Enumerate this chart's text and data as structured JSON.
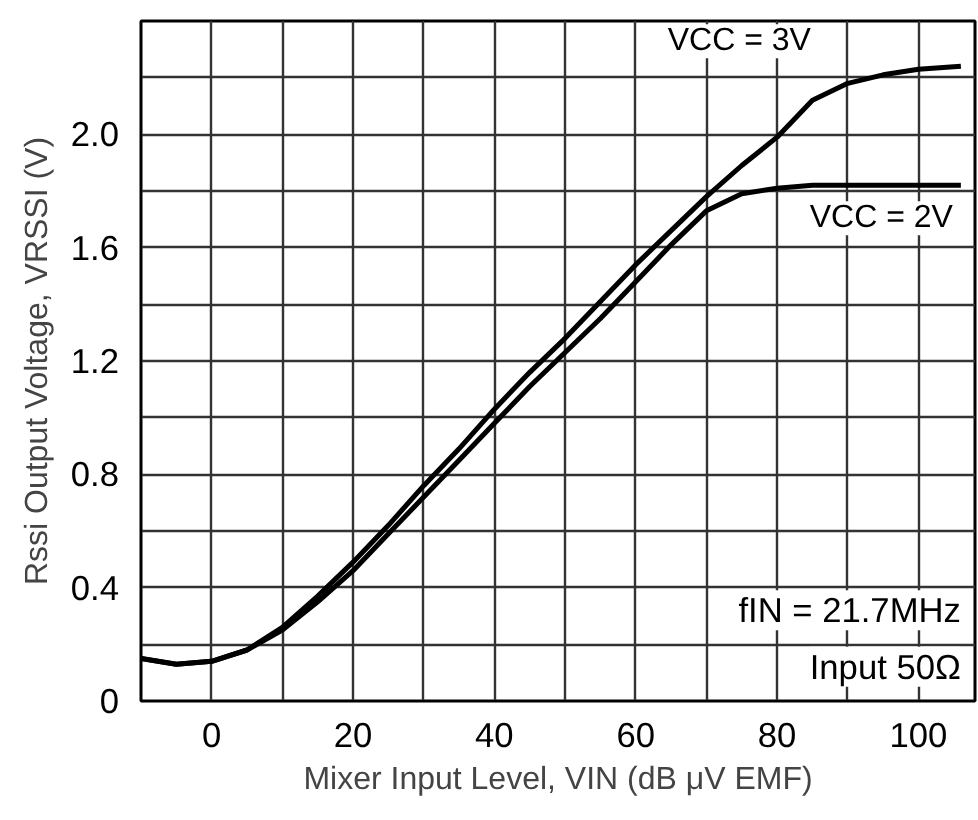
{
  "chart_data": {
    "type": "line",
    "xlabel": "Mixer Input Level, VIN (dB μV EMF)",
    "ylabel": "Rssi Output Voltage, VRSSI (V)",
    "xlim": [
      -10,
      108
    ],
    "ylim": [
      0,
      2.4
    ],
    "xticks": [
      0,
      20,
      40,
      60,
      80,
      100
    ],
    "yticks": [
      {
        "value": 0,
        "label": "0"
      },
      0.4,
      0.8,
      1.2,
      1.6,
      {
        "value": 2.0,
        "label": "2.0"
      }
    ],
    "grid": true,
    "line_style": "solid",
    "marker": "none",
    "series": [
      {
        "name": "VCC = 3V",
        "color": "#000000",
        "x": [
          -10,
          -5,
          0,
          5,
          10,
          15,
          20,
          25,
          30,
          35,
          40,
          45,
          50,
          55,
          60,
          65,
          70,
          75,
          80,
          85,
          90,
          95,
          100,
          106
        ],
        "values": [
          0.15,
          0.13,
          0.14,
          0.18,
          0.26,
          0.37,
          0.49,
          0.62,
          0.76,
          0.89,
          1.03,
          1.16,
          1.28,
          1.41,
          1.54,
          1.66,
          1.78,
          1.89,
          1.99,
          2.12,
          2.18,
          2.21,
          2.23,
          2.24
        ]
      },
      {
        "name": "VCC = 2V",
        "color": "#000000",
        "x": [
          -10,
          -5,
          0,
          5,
          10,
          15,
          20,
          25,
          30,
          35,
          40,
          45,
          50,
          55,
          60,
          65,
          70,
          75,
          80,
          85,
          90,
          95,
          100,
          106
        ],
        "values": [
          0.15,
          0.13,
          0.14,
          0.18,
          0.25,
          0.35,
          0.46,
          0.59,
          0.72,
          0.85,
          0.98,
          1.11,
          1.23,
          1.35,
          1.48,
          1.61,
          1.73,
          1.79,
          1.81,
          1.82,
          1.82,
          1.82,
          1.82,
          1.82
        ]
      }
    ],
    "annotations": [
      "fIN = 21.7MHz",
      "Input 50Ω"
    ]
  }
}
